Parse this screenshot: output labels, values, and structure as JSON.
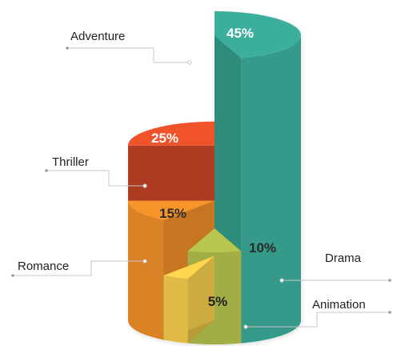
{
  "chart_data": {
    "type": "pie",
    "variant": "3d-stepped-cylinder",
    "categories": [
      "Adventure",
      "Thriller",
      "Romance",
      "Drama",
      "Animation"
    ],
    "values": [
      45,
      25,
      15,
      10,
      5
    ],
    "value_labels": [
      "45%",
      "25%",
      "15%",
      "10%",
      "5%"
    ],
    "unit": "%",
    "colors": {
      "Adventure": "#3BAF9C",
      "Thriller": "#F0522C",
      "Romance": "#F7942C",
      "Drama": "#B8C64E",
      "Animation": "#FFD64F"
    },
    "legend": "none",
    "grid": false
  }
}
